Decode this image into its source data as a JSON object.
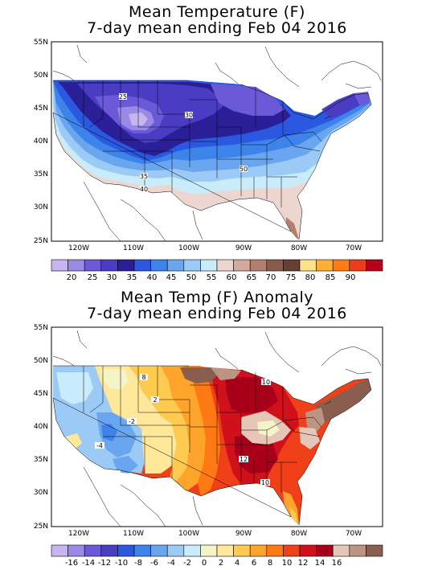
{
  "panels": [
    {
      "title_line1": "Mean Temperature (F)",
      "title_line2": "7-day mean ending Feb 04 2016",
      "lat_labels": [
        "55N",
        "50N",
        "45N",
        "40N",
        "35N",
        "30N",
        "25N"
      ],
      "lon_labels": [
        "120W",
        "110W",
        "100W",
        "90W",
        "80W",
        "70W"
      ],
      "colorbar": {
        "colors": [
          "#c8b4f0",
          "#9a8ae6",
          "#6a5ad8",
          "#4b3cc4",
          "#2a1f96",
          "#2b58e0",
          "#3c84ea",
          "#6aa6f0",
          "#9ccaf6",
          "#c8ecfa",
          "#ecd6cf",
          "#d3a99c",
          "#b3806f",
          "#8a5b4a",
          "#684032",
          "#ffe38a",
          "#ffb034",
          "#ff7d12",
          "#ee3b1a",
          "#b8001a"
        ],
        "labels": [
          "20",
          "25",
          "30",
          "35",
          "40",
          "45",
          "50",
          "55",
          "60",
          "65",
          "70",
          "75",
          "80",
          "85",
          "90"
        ]
      },
      "contour_labels": [
        "25",
        "30",
        "35",
        "40",
        "50"
      ]
    },
    {
      "title_line1": "Mean Temp (F) Anomaly",
      "title_line2": "7-day mean ending Feb 04 2016",
      "lat_labels": [
        "55N",
        "50N",
        "45N",
        "40N",
        "35N",
        "30N",
        "25N"
      ],
      "lon_labels": [
        "120W",
        "110W",
        "100W",
        "90W",
        "80W",
        "70W"
      ],
      "colorbar": {
        "colors": [
          "#c8b4f0",
          "#9a8ae6",
          "#6a5ad8",
          "#4b3cc4",
          "#2b58e0",
          "#3c84ea",
          "#6aa6f0",
          "#9ccaf6",
          "#c8ecfa",
          "#f4f4c8",
          "#ffe89a",
          "#ffca50",
          "#ffa42a",
          "#ff7a14",
          "#f0401a",
          "#d0101a",
          "#a8001a",
          "#e6c6b6",
          "#bb9484",
          "#8a5e4e"
        ],
        "labels": [
          "-16",
          "-14",
          "-12",
          "-10",
          "-8",
          "-6",
          "-4",
          "-2",
          "0",
          "2",
          "4",
          "6",
          "8",
          "10",
          "12",
          "14",
          "16"
        ]
      },
      "contour_labels": [
        "8",
        "10",
        "2",
        "-2",
        "-4",
        "12",
        "10"
      ]
    }
  ]
}
